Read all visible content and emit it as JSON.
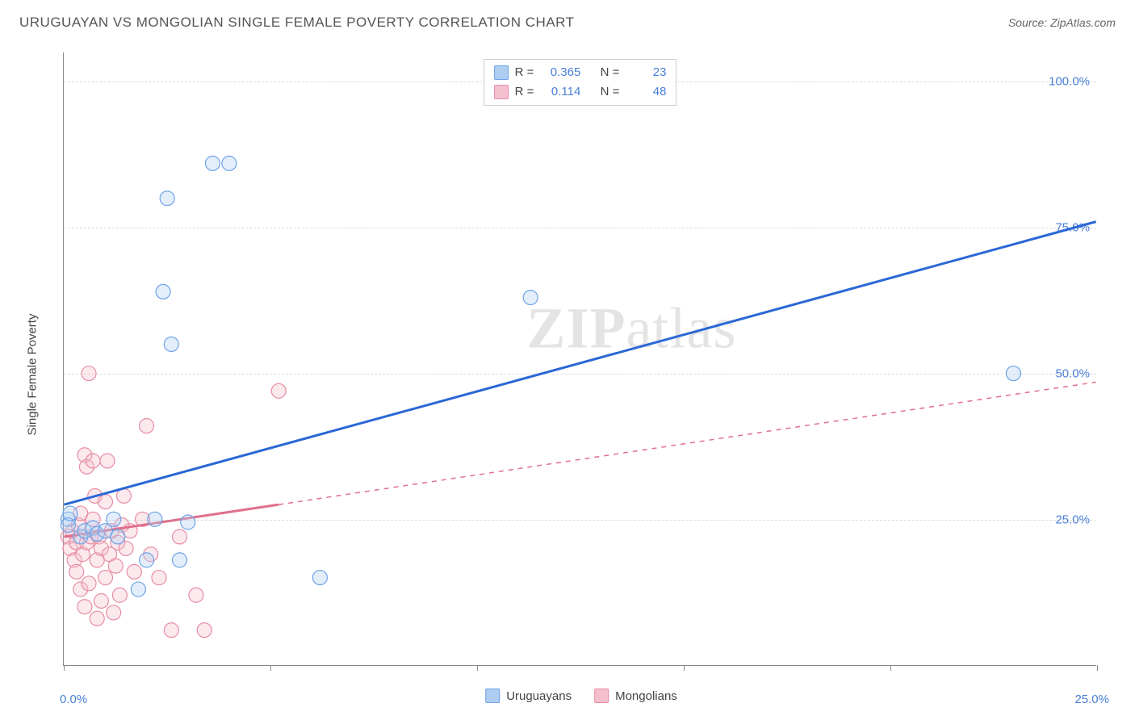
{
  "header": {
    "title": "URUGUAYAN VS MONGOLIAN SINGLE FEMALE POVERTY CORRELATION CHART",
    "source_prefix": "Source: ",
    "source_name": "ZipAtlas.com"
  },
  "chart": {
    "type": "scatter",
    "y_axis_label": "Single Female Poverty",
    "background_color": "#ffffff",
    "grid_color": "#e0e0e0",
    "axis_color": "#888888",
    "xlim": [
      0,
      25
    ],
    "ylim": [
      0,
      105
    ],
    "x_ticks": [
      0,
      5,
      10,
      15,
      20,
      25
    ],
    "x_origin_label": "0.0%",
    "x_end_label": "25.0%",
    "y_gridlines": [
      {
        "value": 25,
        "label": "25.0%"
      },
      {
        "value": 50,
        "label": "50.0%"
      },
      {
        "value": 75,
        "label": "75.0%"
      },
      {
        "value": 100,
        "label": "100.0%"
      }
    ],
    "marker_radius": 9,
    "marker_stroke_width": 1.2,
    "marker_fill_opacity": 0.35,
    "trend_line_width": 3,
    "watermark_text_bold": "ZIP",
    "watermark_text_rest": "atlas",
    "series": [
      {
        "key": "uruguayans",
        "label": "Uruguayans",
        "color_stroke": "#6da3e8",
        "color_fill": "#aecdf0",
        "r_label": "R =",
        "r_value": "0.365",
        "n_label": "N =",
        "n_value": "23",
        "trend": {
          "x1": 0,
          "y1": 27.5,
          "x2": 25,
          "y2": 76.0,
          "solid_until_x": 25,
          "color": "#2b67d6"
        },
        "points": [
          {
            "x": 0.1,
            "y": 25
          },
          {
            "x": 0.1,
            "y": 24
          },
          {
            "x": 0.15,
            "y": 26
          },
          {
            "x": 0.4,
            "y": 22
          },
          {
            "x": 0.5,
            "y": 23
          },
          {
            "x": 0.7,
            "y": 23.5
          },
          {
            "x": 0.8,
            "y": 22.5
          },
          {
            "x": 1.0,
            "y": 23
          },
          {
            "x": 1.2,
            "y": 25
          },
          {
            "x": 1.3,
            "y": 22
          },
          {
            "x": 1.8,
            "y": 13
          },
          {
            "x": 2.0,
            "y": 18
          },
          {
            "x": 2.2,
            "y": 25
          },
          {
            "x": 2.4,
            "y": 64
          },
          {
            "x": 2.5,
            "y": 80
          },
          {
            "x": 2.6,
            "y": 55
          },
          {
            "x": 2.8,
            "y": 18
          },
          {
            "x": 3.0,
            "y": 24.5
          },
          {
            "x": 3.6,
            "y": 86
          },
          {
            "x": 4.0,
            "y": 86
          },
          {
            "x": 6.2,
            "y": 15
          },
          {
            "x": 11.3,
            "y": 63
          },
          {
            "x": 23.0,
            "y": 50
          }
        ]
      },
      {
        "key": "mongolians",
        "label": "Mongolians",
        "color_stroke": "#e88ca3",
        "color_fill": "#f4bfce",
        "r_label": "R =",
        "r_value": "0.114",
        "n_label": "N =",
        "n_value": "48",
        "trend": {
          "x1": 0,
          "y1": 22,
          "x2": 25,
          "y2": 48.5,
          "solid_until_x": 5.2,
          "color": "#e06f8d"
        },
        "points": [
          {
            "x": 0.1,
            "y": 22
          },
          {
            "x": 0.15,
            "y": 20
          },
          {
            "x": 0.2,
            "y": 23
          },
          {
            "x": 0.25,
            "y": 18
          },
          {
            "x": 0.3,
            "y": 21
          },
          {
            "x": 0.3,
            "y": 16
          },
          {
            "x": 0.35,
            "y": 24
          },
          {
            "x": 0.4,
            "y": 13
          },
          {
            "x": 0.4,
            "y": 26
          },
          {
            "x": 0.45,
            "y": 19
          },
          {
            "x": 0.5,
            "y": 10
          },
          {
            "x": 0.5,
            "y": 36
          },
          {
            "x": 0.55,
            "y": 34
          },
          {
            "x": 0.55,
            "y": 21
          },
          {
            "x": 0.6,
            "y": 50
          },
          {
            "x": 0.6,
            "y": 14
          },
          {
            "x": 0.65,
            "y": 22
          },
          {
            "x": 0.7,
            "y": 25
          },
          {
            "x": 0.7,
            "y": 35
          },
          {
            "x": 0.75,
            "y": 29
          },
          {
            "x": 0.8,
            "y": 8
          },
          {
            "x": 0.8,
            "y": 18
          },
          {
            "x": 0.85,
            "y": 22
          },
          {
            "x": 0.9,
            "y": 11
          },
          {
            "x": 0.9,
            "y": 20
          },
          {
            "x": 1.0,
            "y": 15
          },
          {
            "x": 1.0,
            "y": 28
          },
          {
            "x": 1.05,
            "y": 35
          },
          {
            "x": 1.1,
            "y": 19
          },
          {
            "x": 1.15,
            "y": 23
          },
          {
            "x": 1.2,
            "y": 9
          },
          {
            "x": 1.25,
            "y": 17
          },
          {
            "x": 1.3,
            "y": 21
          },
          {
            "x": 1.35,
            "y": 12
          },
          {
            "x": 1.4,
            "y": 24
          },
          {
            "x": 1.45,
            "y": 29
          },
          {
            "x": 1.5,
            "y": 20
          },
          {
            "x": 1.6,
            "y": 23
          },
          {
            "x": 1.7,
            "y": 16
          },
          {
            "x": 1.9,
            "y": 25
          },
          {
            "x": 2.0,
            "y": 41
          },
          {
            "x": 2.1,
            "y": 19
          },
          {
            "x": 2.3,
            "y": 15
          },
          {
            "x": 2.6,
            "y": 6
          },
          {
            "x": 2.8,
            "y": 22
          },
          {
            "x": 3.2,
            "y": 12
          },
          {
            "x": 3.4,
            "y": 6
          },
          {
            "x": 5.2,
            "y": 47
          }
        ]
      }
    ]
  }
}
